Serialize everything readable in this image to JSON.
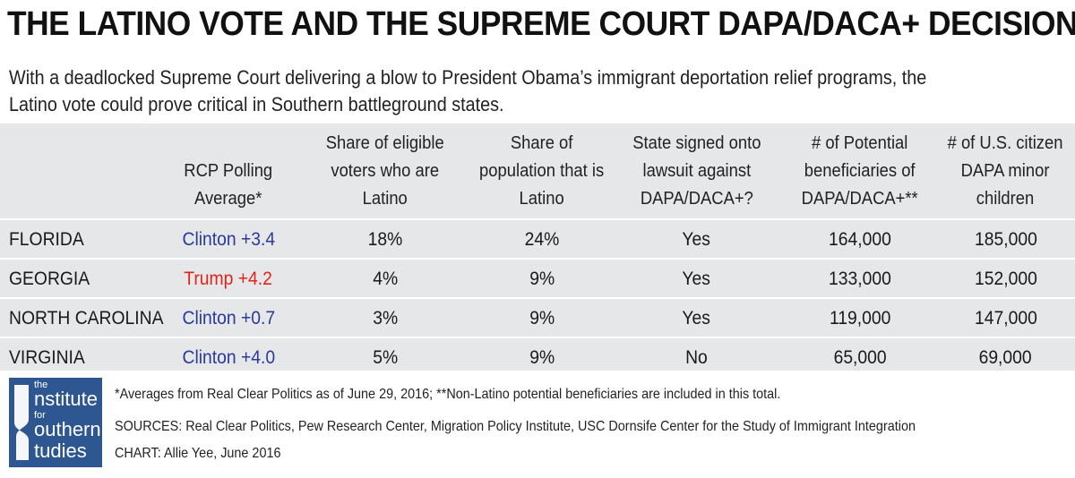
{
  "title": "THE LATINO VOTE AND THE SUPREME COURT DAPA/DACA+ DECISION",
  "subtitle": "With a deadlocked Supreme Court delivering a blow to President Obama’s immigrant deportation relief programs, the Latino vote could prove critical in Southern battleground states.",
  "colors": {
    "clinton": "#2b3a9a",
    "trump": "#e2231a",
    "table_bg": "#e6e7e8",
    "logo_bg": "#2e5690"
  },
  "chart_data": {
    "type": "table",
    "columns": [
      "",
      "RCP Polling Average*",
      "Share of eligible voters who are Latino",
      "Share of population that is Latino",
      "State signed onto lawsuit against DAPA/DACA+?",
      "# of Potential beneficiaries of DAPA/DACA+**",
      "# of U.S. citizen DAPA minor children"
    ],
    "rows": [
      {
        "state": "FLORIDA",
        "polling": "Clinton +3.4",
        "polling_party": "clinton",
        "eligible": "18%",
        "population": "24%",
        "lawsuit": "Yes",
        "beneficiaries": "164,000",
        "children": "185,000"
      },
      {
        "state": "GEORGIA",
        "polling": "Trump +4.2",
        "polling_party": "trump",
        "eligible": "4%",
        "population": "9%",
        "lawsuit": "Yes",
        "beneficiaries": "133,000",
        "children": "152,000"
      },
      {
        "state": "NORTH CAROLINA",
        "polling": "Clinton +0.7",
        "polling_party": "clinton",
        "eligible": "3%",
        "population": "9%",
        "lawsuit": "Yes",
        "beneficiaries": "119,000",
        "children": "147,000"
      },
      {
        "state": "VIRGINIA",
        "polling": "Clinton +4.0",
        "polling_party": "clinton",
        "eligible": "5%",
        "population": "9%",
        "lawsuit": "No",
        "beneficiaries": "65,000",
        "children": "69,000"
      }
    ]
  },
  "header_lines": {
    "c1": [
      "RCP Polling",
      "Average*"
    ],
    "c2": [
      "Share of eligible",
      "voters who are",
      "Latino"
    ],
    "c3": [
      "Share of",
      "population that is",
      "Latino"
    ],
    "c4": [
      "State signed onto",
      "lawsuit against",
      "DAPA/DACA+?"
    ],
    "c5": [
      "# of Potential",
      "beneficiaries of",
      "DAPA/DACA+**"
    ],
    "c6": [
      "# of U.S. citizen",
      "DAPA minor",
      "children"
    ]
  },
  "logo": {
    "words": [
      "the",
      "nstitute",
      "for",
      "outhern",
      "tudies"
    ],
    "icon": "institute-for-southern-studies-logo-icon"
  },
  "notes": {
    "footnote": "*Averages from Real Clear Politics as of June 29, 2016; **Non-Latino potential beneficiaries are included in this total.",
    "sources": "SOURCES: Real Clear Politics, Pew Research Center, Migration Policy Institute, USC Dornsife Center for the Study of Immigrant Integration",
    "credit": "CHART: Allie Yee, June 2016"
  }
}
